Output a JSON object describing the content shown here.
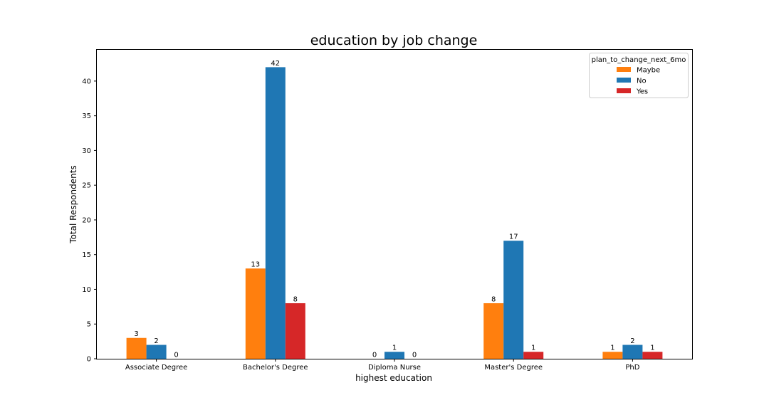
{
  "chart_data": {
    "type": "bar",
    "title": "education by job change",
    "xlabel": "highest education",
    "ylabel": "Total Respondents",
    "categories": [
      "Associate Degree",
      "Bachelor's Degree",
      "Diploma Nurse",
      "Master's Degree",
      "PhD"
    ],
    "series": [
      {
        "name": "Maybe",
        "color": "#ff7f0e",
        "values": [
          3,
          13,
          0,
          8,
          1
        ]
      },
      {
        "name": "No",
        "color": "#1f77b4",
        "values": [
          2,
          42,
          1,
          17,
          2
        ]
      },
      {
        "name": "Yes",
        "color": "#d62728",
        "values": [
          0,
          8,
          0,
          1,
          1
        ]
      }
    ],
    "ylim": [
      0,
      44.5
    ],
    "yticks": [
      0,
      5,
      10,
      15,
      20,
      25,
      30,
      35,
      40
    ],
    "legend": {
      "title": "plan_to_change_next_6mo",
      "position": "top-right"
    },
    "grid": false
  }
}
